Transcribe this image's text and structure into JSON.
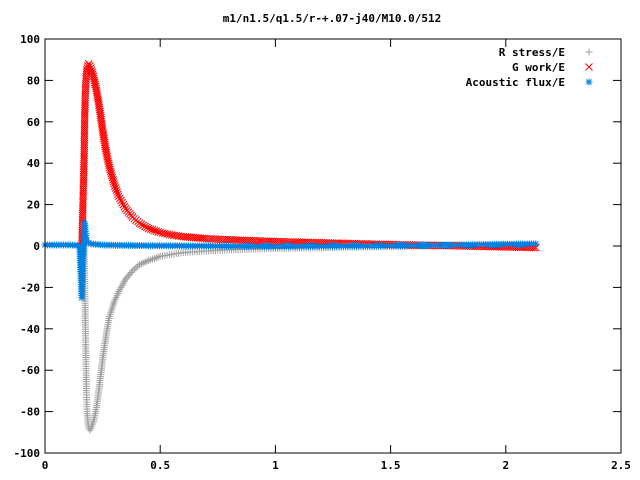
{
  "chart_data": {
    "type": "scatter",
    "title": "m1/n1.5/q1.5/r-+.07-j40/M10.0/512",
    "xlabel": "",
    "ylabel": "",
    "xlim": [
      0,
      2.5
    ],
    "ylim": [
      -100,
      100
    ],
    "x_ticks": [
      "0",
      "0.5",
      "1",
      "1.5",
      "2",
      "2.5"
    ],
    "y_ticks": [
      "100",
      "80",
      "60",
      "40",
      "20",
      "0",
      "-20",
      "-40",
      "-60",
      "-80",
      "-100"
    ],
    "grid": false,
    "legend_position": "top-right",
    "x_max_data": 2.13,
    "series": [
      {
        "name": "R stress/E",
        "marker": "plus",
        "color": "#a0a0a0",
        "points": [
          [
            0.17,
            0
          ],
          [
            0.172,
            -13
          ],
          [
            0.175,
            -36
          ],
          [
            0.178,
            -56
          ],
          [
            0.18,
            -72
          ],
          [
            0.183,
            -81
          ],
          [
            0.187,
            -86
          ],
          [
            0.19,
            -88
          ],
          [
            0.195,
            -89
          ],
          [
            0.2,
            -88
          ],
          [
            0.21,
            -85
          ],
          [
            0.22,
            -80
          ],
          [
            0.23,
            -73
          ],
          [
            0.24,
            -64
          ],
          [
            0.25,
            -55
          ],
          [
            0.26,
            -47
          ],
          [
            0.27,
            -40
          ],
          [
            0.28,
            -34
          ],
          [
            0.3,
            -27
          ],
          [
            0.32,
            -22
          ],
          [
            0.35,
            -16
          ],
          [
            0.38,
            -12
          ],
          [
            0.41,
            -9
          ],
          [
            0.45,
            -7
          ],
          [
            0.5,
            -5
          ],
          [
            0.55,
            -4
          ],
          [
            0.6,
            -3.2
          ],
          [
            0.7,
            -2.4
          ],
          [
            0.8,
            -1.8
          ],
          [
            1.0,
            -1.2
          ],
          [
            1.2,
            -0.8
          ],
          [
            1.4,
            -0.4
          ],
          [
            1.6,
            -0.1
          ],
          [
            1.8,
            0.3
          ],
          [
            2.0,
            0.6
          ],
          [
            2.13,
            0.8
          ]
        ]
      },
      {
        "name": "G work/E",
        "marker": "cross",
        "color": "#ff0000",
        "points": [
          [
            0.16,
            0
          ],
          [
            0.165,
            22
          ],
          [
            0.17,
            44
          ],
          [
            0.172,
            61
          ],
          [
            0.175,
            74
          ],
          [
            0.18,
            84
          ],
          [
            0.185,
            87
          ],
          [
            0.19,
            88
          ],
          [
            0.2,
            86
          ],
          [
            0.21,
            82
          ],
          [
            0.22,
            77
          ],
          [
            0.23,
            71
          ],
          [
            0.24,
            64
          ],
          [
            0.25,
            56
          ],
          [
            0.26,
            49
          ],
          [
            0.27,
            43
          ],
          [
            0.28,
            38
          ],
          [
            0.3,
            30
          ],
          [
            0.32,
            24
          ],
          [
            0.35,
            18
          ],
          [
            0.38,
            14
          ],
          [
            0.41,
            11
          ],
          [
            0.45,
            8.5
          ],
          [
            0.5,
            6.5
          ],
          [
            0.55,
            5.3
          ],
          [
            0.6,
            4.5
          ],
          [
            0.7,
            3.6
          ],
          [
            0.8,
            3.0
          ],
          [
            1.0,
            2.2
          ],
          [
            1.2,
            1.6
          ],
          [
            1.4,
            1.0
          ],
          [
            1.6,
            0.5
          ],
          [
            1.8,
            0
          ],
          [
            2.0,
            -0.5
          ],
          [
            2.13,
            -0.8
          ]
        ]
      },
      {
        "name": "Acoustic flux/E",
        "marker": "star",
        "color": "#0080e0",
        "points": [
          [
            0.0,
            0.5
          ],
          [
            0.1,
            0.5
          ],
          [
            0.15,
            0.3
          ],
          [
            0.16,
            -25
          ],
          [
            0.165,
            -6
          ],
          [
            0.17,
            3
          ],
          [
            0.172,
            11
          ],
          [
            0.175,
            7
          ],
          [
            0.178,
            4
          ],
          [
            0.18,
            2.5
          ],
          [
            0.19,
            1.5
          ],
          [
            0.2,
            1.0
          ],
          [
            0.25,
            0.5
          ],
          [
            0.4,
            0.2
          ],
          [
            0.7,
            0
          ],
          [
            1.0,
            -0.2
          ],
          [
            1.4,
            0
          ],
          [
            1.8,
            0.5
          ],
          [
            2.13,
            1.0
          ]
        ]
      }
    ]
  }
}
